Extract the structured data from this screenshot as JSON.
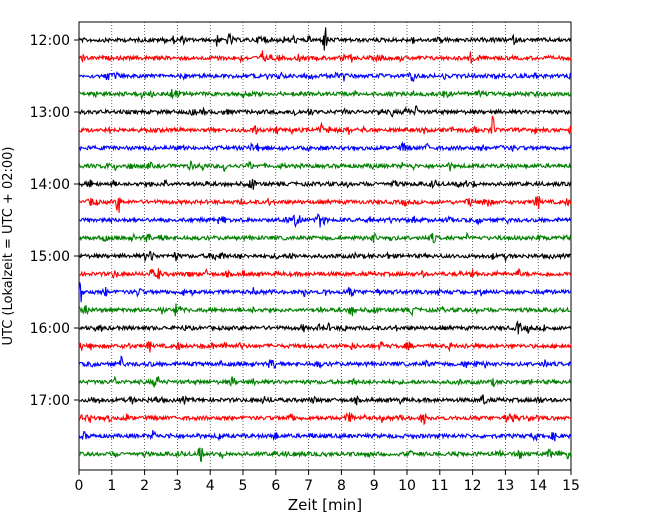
{
  "chart_data": {
    "type": "line",
    "title": "",
    "xlabel": "Zeit  [min]",
    "ylabel": "UTC (Lokalzeit = UTC + 02:00)",
    "xlim": [
      0,
      15
    ],
    "x_ticks": [
      "0",
      "1",
      "2",
      "3",
      "4",
      "5",
      "6",
      "7",
      "8",
      "9",
      "10",
      "11",
      "12",
      "13",
      "14",
      "15"
    ],
    "y_tick_labels": [
      "12:00",
      "13:00",
      "14:00",
      "15:00",
      "16:00",
      "17:00"
    ],
    "grid": "vertical-dotted",
    "trace_count": 24,
    "trace_interval_min": 15,
    "series_colors": [
      "#000000",
      "#ff0000",
      "#0000ff",
      "#008000"
    ],
    "events": [
      {
        "trace": 0,
        "x": 7.5,
        "amp": 1.0
      },
      {
        "trace": 0,
        "x": 4.2,
        "amp": 0.35
      },
      {
        "trace": 2,
        "x": 8.1,
        "amp": 0.35
      },
      {
        "trace": 4,
        "x": 10.3,
        "amp": 0.4
      },
      {
        "trace": 5,
        "x": 12.6,
        "amp": 1.0
      },
      {
        "trace": 5,
        "x": 7.4,
        "amp": 0.4
      },
      {
        "trace": 8,
        "x": 5.3,
        "amp": 0.35
      },
      {
        "trace": 9,
        "x": 1.2,
        "amp": 0.9
      },
      {
        "trace": 9,
        "x": 14.0,
        "amp": 0.4
      },
      {
        "trace": 10,
        "x": 7.3,
        "amp": 0.6
      },
      {
        "trace": 11,
        "x": 9.0,
        "amp": 0.35
      },
      {
        "trace": 13,
        "x": 13.4,
        "amp": 0.3
      },
      {
        "trace": 14,
        "x": 0.05,
        "amp": 0.7
      },
      {
        "trace": 16,
        "x": 13.4,
        "amp": 0.3
      },
      {
        "trace": 18,
        "x": 1.3,
        "amp": 0.45
      },
      {
        "trace": 18,
        "x": 11.8,
        "amp": 0.4
      },
      {
        "trace": 19,
        "x": 2.4,
        "amp": 0.35
      },
      {
        "trace": 21,
        "x": 10.5,
        "amp": 0.6
      },
      {
        "trace": 22,
        "x": 13.9,
        "amp": 0.3
      },
      {
        "trace": 23,
        "x": 3.7,
        "amp": 0.7
      }
    ]
  }
}
